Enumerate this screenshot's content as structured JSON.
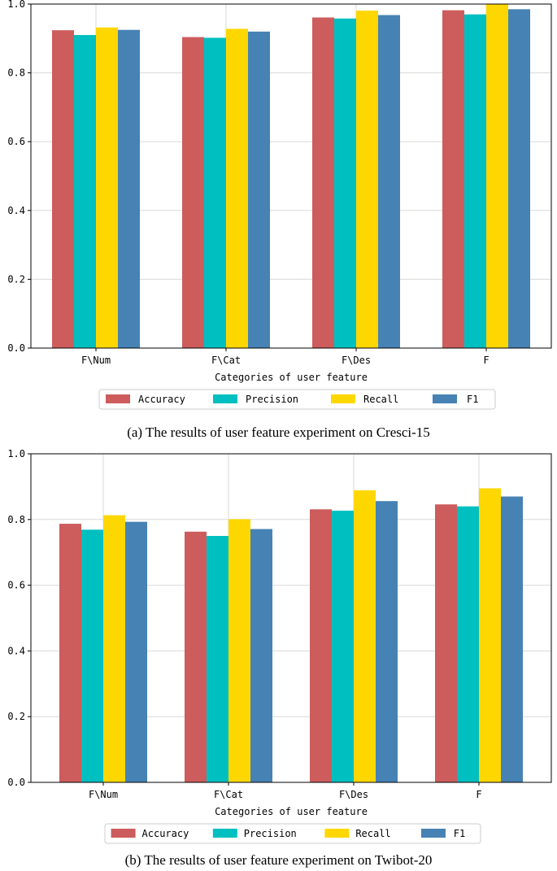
{
  "colors": {
    "Accuracy": "#cd5c5c",
    "Precision": "#00bfc0",
    "Recall": "#ffd700",
    "F1": "#4682b4"
  },
  "chart_data": [
    {
      "type": "bar",
      "categories": [
        "F\\Num",
        "F\\Cat",
        "F\\Des",
        "F"
      ],
      "series": [
        {
          "name": "Accuracy",
          "values": [
            0.924,
            0.904,
            0.961,
            0.982
          ]
        },
        {
          "name": "Precision",
          "values": [
            0.91,
            0.902,
            0.958,
            0.97
          ]
        },
        {
          "name": "Recall",
          "values": [
            0.932,
            0.928,
            0.981,
            1.0
          ]
        },
        {
          "name": "F1",
          "values": [
            0.925,
            0.92,
            0.968,
            0.985
          ]
        }
      ],
      "yticks": [
        "0.0",
        "0.2",
        "0.4",
        "0.6",
        "0.8",
        "1.0"
      ],
      "ylim": [
        0,
        1
      ],
      "xlabel": "Categories of user feature",
      "ylabel": "",
      "grid": true,
      "legend_placement": "bottom-center",
      "caption": "(a) The results of user feature experiment on Cresci-15"
    },
    {
      "type": "bar",
      "categories": [
        "F\\Num",
        "F\\Cat",
        "F\\Des",
        "F"
      ],
      "series": [
        {
          "name": "Accuracy",
          "values": [
            0.787,
            0.763,
            0.831,
            0.846
          ]
        },
        {
          "name": "Precision",
          "values": [
            0.769,
            0.75,
            0.827,
            0.84
          ]
        },
        {
          "name": "Recall",
          "values": [
            0.813,
            0.801,
            0.889,
            0.895
          ]
        },
        {
          "name": "F1",
          "values": [
            0.793,
            0.771,
            0.856,
            0.87
          ]
        }
      ],
      "yticks": [
        "0.0",
        "0.2",
        "0.4",
        "0.6",
        "0.8",
        "1.0"
      ],
      "ylim": [
        0,
        1
      ],
      "xlabel": "Categories of user feature",
      "ylabel": "",
      "grid": true,
      "legend_placement": "bottom-center",
      "caption": "(b) The results of user feature experiment on Twibot-20"
    }
  ]
}
